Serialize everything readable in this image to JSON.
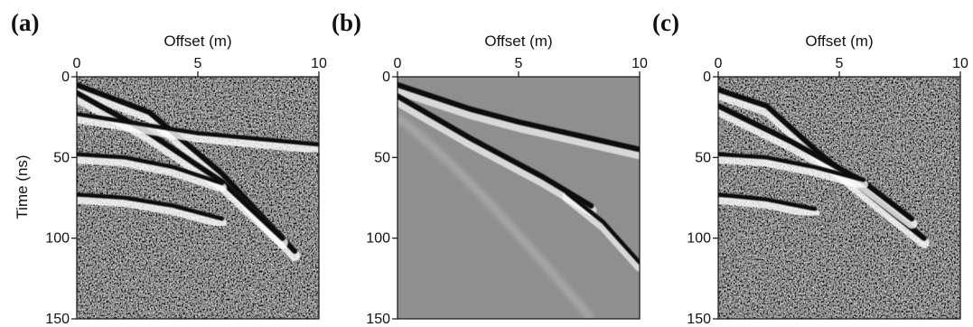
{
  "figure": {
    "panels": [
      {
        "letter": "(a)",
        "xlabel": "Offset (m)",
        "ylabel": "Time (ns)",
        "background": "#9a9a9a",
        "noise": "strong"
      },
      {
        "letter": "(b)",
        "xlabel": "Offset (m)",
        "ylabel": "",
        "background": "#8f8f8f",
        "noise": "none"
      },
      {
        "letter": "(c)",
        "xlabel": "Offset (m)",
        "ylabel": "",
        "background": "#9a9a9a",
        "noise": "strong"
      }
    ]
  },
  "chart_data": [
    {
      "type": "heatmap",
      "panel": "(a)",
      "title": "",
      "xlabel": "Offset (m)",
      "ylabel": "Time (ns)",
      "xlim": [
        0,
        10
      ],
      "ylim": [
        0,
        150
      ],
      "y_inverted": true,
      "xticks": [
        0,
        5,
        10
      ],
      "yticks": [
        0,
        50,
        100,
        150
      ],
      "grid": false,
      "events": [
        {
          "x": [
            0,
            3,
            6,
            9
          ],
          "y": [
            5,
            22,
            60,
            108
          ]
        },
        {
          "x": [
            0,
            3,
            6,
            8.5
          ],
          "y": [
            10,
            35,
            65,
            100
          ]
        },
        {
          "x": [
            0,
            5,
            10
          ],
          "y": [
            23,
            35,
            42
          ]
        },
        {
          "x": [
            0,
            2,
            4,
            6
          ],
          "y": [
            48,
            50,
            56,
            66
          ]
        },
        {
          "x": [
            0,
            2,
            4,
            6
          ],
          "y": [
            73,
            75,
            80,
            88
          ]
        }
      ]
    },
    {
      "type": "heatmap",
      "panel": "(b)",
      "title": "",
      "xlabel": "Offset (m)",
      "ylabel": "",
      "xlim": [
        0,
        10
      ],
      "ylim": [
        0,
        150
      ],
      "y_inverted": true,
      "xticks": [
        0,
        5,
        10
      ],
      "yticks": [
        0,
        50,
        100,
        150
      ],
      "grid": false,
      "events": [
        {
          "x": [
            0,
            3,
            5,
            10
          ],
          "y": [
            5,
            20,
            28,
            45
          ]
        },
        {
          "x": [
            0,
            3,
            6,
            8
          ],
          "y": [
            12,
            38,
            62,
            80
          ]
        },
        {
          "x": [
            7,
            8.5,
            10
          ],
          "y": [
            72,
            90,
            115
          ]
        }
      ]
    },
    {
      "type": "heatmap",
      "panel": "(c)",
      "title": "",
      "xlabel": "Offset (m)",
      "ylabel": "",
      "xlim": [
        0,
        10
      ],
      "ylim": [
        0,
        150
      ],
      "y_inverted": true,
      "xticks": [
        0,
        5,
        10
      ],
      "yticks": [
        0,
        50,
        100,
        150
      ],
      "grid": false,
      "events": [
        {
          "x": [
            0,
            2,
            4,
            6,
            8.5
          ],
          "y": [
            8,
            18,
            45,
            70,
            100
          ]
        },
        {
          "x": [
            0,
            3,
            6,
            8
          ],
          "y": [
            18,
            40,
            65,
            88
          ]
        },
        {
          "x": [
            0,
            2,
            4,
            6
          ],
          "y": [
            48,
            50,
            56,
            64
          ]
        },
        {
          "x": [
            0,
            2,
            4
          ],
          "y": [
            73,
            76,
            82
          ]
        }
      ]
    }
  ]
}
